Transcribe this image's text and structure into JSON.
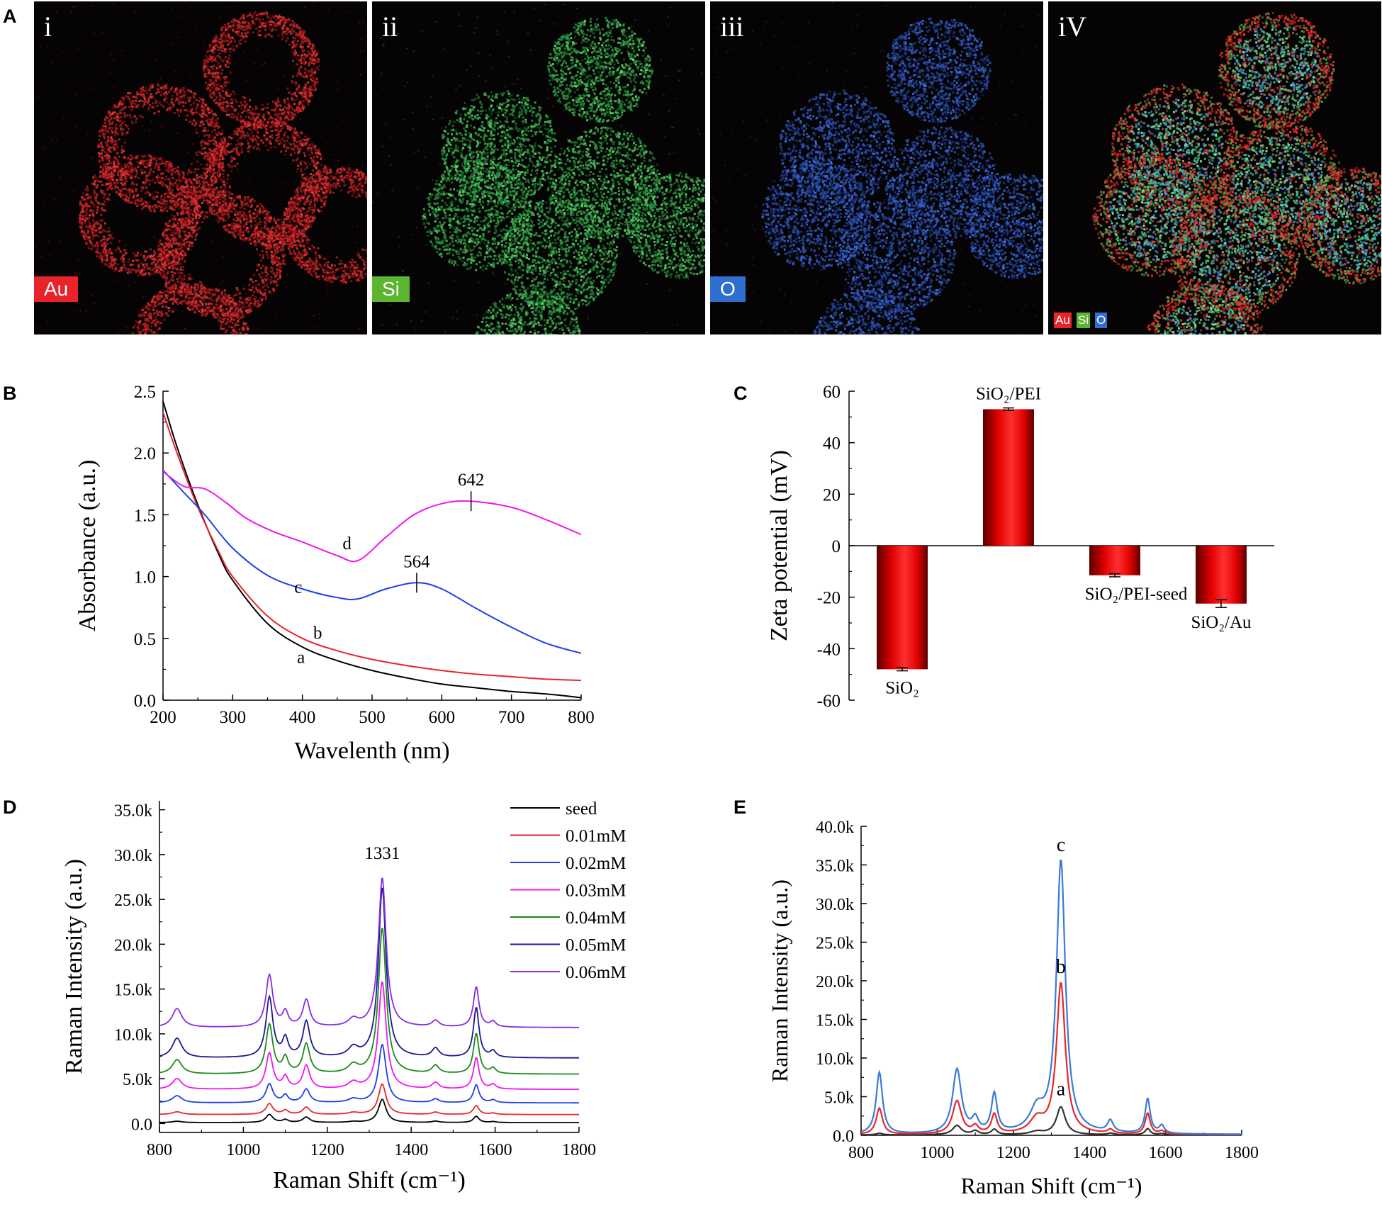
{
  "panel_labels": {
    "a": "A",
    "b": "B",
    "c": "C",
    "d": "D",
    "e": "E"
  },
  "maps": [
    {
      "roman": "i",
      "tag": "Au",
      "tag_color": "#e8232a"
    },
    {
      "roman": "ii",
      "tag": "Si",
      "tag_color": "#5cb531"
    },
    {
      "roman": "iii",
      "tag": "O",
      "tag_color": "#2f6fd0"
    },
    {
      "roman": "iV",
      "tags": [
        "Au",
        "Si",
        "O"
      ]
    }
  ],
  "chart_data": [
    {
      "id": "B",
      "type": "line",
      "xlabel": "Wavelenth (nm)",
      "ylabel": "Absorbance (a.u.)",
      "xlim": [
        200,
        800
      ],
      "ylim": [
        0,
        2.5
      ],
      "xticks": [
        "200",
        "300",
        "400",
        "500",
        "600",
        "700",
        "800"
      ],
      "yticks": [
        "0.0",
        "0.5",
        "1.0",
        "1.5",
        "2.0",
        "2.5"
      ],
      "series": [
        {
          "name": "a",
          "color": "#000000",
          "x": [
            200,
            220,
            250,
            280,
            300,
            350,
            400,
            450,
            500,
            550,
            600,
            650,
            700,
            750,
            800
          ],
          "y": [
            2.42,
            2.05,
            1.58,
            1.18,
            0.97,
            0.62,
            0.43,
            0.32,
            0.24,
            0.18,
            0.13,
            0.1,
            0.07,
            0.05,
            0.02
          ]
        },
        {
          "name": "b",
          "color": "#e8262a",
          "x": [
            200,
            220,
            250,
            280,
            300,
            350,
            400,
            450,
            500,
            550,
            600,
            650,
            700,
            750,
            800
          ],
          "y": [
            2.33,
            2.0,
            1.56,
            1.2,
            1.0,
            0.68,
            0.5,
            0.4,
            0.33,
            0.28,
            0.24,
            0.21,
            0.19,
            0.17,
            0.16
          ]
        },
        {
          "name": "c",
          "color": "#1f3fe6",
          "x": [
            200,
            230,
            260,
            300,
            350,
            400,
            450,
            480,
            520,
            564,
            600,
            650,
            700,
            750,
            800
          ],
          "y": [
            1.86,
            1.68,
            1.5,
            1.23,
            1.01,
            0.9,
            0.83,
            0.82,
            0.9,
            0.95,
            0.9,
            0.74,
            0.59,
            0.46,
            0.38
          ]
        },
        {
          "name": "d",
          "color": "#f016ee",
          "x": [
            200,
            230,
            260,
            290,
            320,
            360,
            400,
            450,
            480,
            520,
            560,
            600,
            642,
            700,
            750,
            800
          ],
          "y": [
            1.85,
            1.73,
            1.71,
            1.6,
            1.47,
            1.36,
            1.28,
            1.17,
            1.13,
            1.32,
            1.5,
            1.59,
            1.61,
            1.56,
            1.46,
            1.34
          ]
        }
      ],
      "annotations": [
        {
          "text": "642",
          "x": 642,
          "y": 1.61
        },
        {
          "text": "564",
          "x": 564,
          "y": 0.95
        }
      ],
      "curve_labels": [
        {
          "text": "a",
          "x": 398,
          "y": 0.3
        },
        {
          "text": "b",
          "x": 422,
          "y": 0.5
        },
        {
          "text": "c",
          "x": 394,
          "y": 0.87
        },
        {
          "text": "d",
          "x": 464,
          "y": 1.22
        }
      ]
    },
    {
      "id": "C",
      "type": "bar",
      "ylabel": "Zeta potential (mV)",
      "ylim": [
        -60,
        60
      ],
      "yticks": [
        "-60",
        "-40",
        "-20",
        "0",
        "20",
        "40",
        "60"
      ],
      "categories": [
        "SiO₂",
        "SiO₂/PEI",
        "SiO₂/PEI-seed",
        "SiO₂/Au"
      ],
      "values": [
        -48,
        53,
        -11.5,
        -22.5
      ],
      "errors": [
        0.6,
        0.5,
        0.6,
        1.5
      ],
      "color": "#e00000"
    },
    {
      "id": "D",
      "type": "line",
      "xlabel": "Raman Shift (cm⁻¹)",
      "ylabel": "Raman Intensity (a.u.)",
      "xlim": [
        800,
        1800
      ],
      "ylim": [
        -1000,
        36000
      ],
      "xticks": [
        "800",
        "1000",
        "1200",
        "1400",
        "1600",
        "1800"
      ],
      "yticks": [
        "0.0",
        "5.0k",
        "10.0k",
        "15.0k",
        "20.0k",
        "25.0k",
        "30.0k",
        "35.0k"
      ],
      "peak_label": "1331",
      "peaks": [
        842,
        1062,
        1100,
        1150,
        1262,
        1331,
        1458,
        1555,
        1595
      ],
      "widths": [
        14,
        10,
        8,
        10,
        14,
        11,
        10,
        8,
        8
      ],
      "series": [
        {
          "name": "seed",
          "color": "#000000",
          "baseline": 100,
          "amps": [
            150,
            900,
            300,
            600,
            100,
            2600,
            150,
            700,
            100
          ]
        },
        {
          "name": "0.01mM",
          "color": "#e8262a",
          "baseline": 1000,
          "amps": [
            300,
            1200,
            450,
            800,
            200,
            3400,
            250,
            1000,
            150
          ]
        },
        {
          "name": "0.02mM",
          "color": "#1f3fe6",
          "baseline": 2300,
          "amps": [
            800,
            2100,
            800,
            1500,
            400,
            6500,
            400,
            2000,
            300
          ]
        },
        {
          "name": "0.03mM",
          "color": "#f016ee",
          "baseline": 3800,
          "amps": [
            1200,
            4000,
            1300,
            2600,
            700,
            12000,
            700,
            3500,
            500
          ]
        },
        {
          "name": "0.04mM",
          "color": "#1a8a1a",
          "baseline": 5500,
          "amps": [
            1600,
            5500,
            1700,
            3300,
            900,
            16300,
            900,
            4500,
            600
          ]
        },
        {
          "name": "0.05mM",
          "color": "#1a1a8c",
          "baseline": 7300,
          "amps": [
            2200,
            6700,
            2000,
            4000,
            1000,
            19000,
            1000,
            5600,
            700
          ]
        },
        {
          "name": "0.06mM",
          "color": "#8a2be2",
          "baseline": 10700,
          "amps": [
            2100,
            5800,
            1600,
            3000,
            800,
            16700,
            700,
            4500,
            600
          ]
        }
      ]
    },
    {
      "id": "E",
      "type": "line",
      "xlabel": "Raman Shift (cm⁻¹)",
      "ylabel": "Raman Intensity (a.u.)",
      "xlim": [
        800,
        1800
      ],
      "ylim": [
        0,
        40000
      ],
      "xticks": [
        "800",
        "1000",
        "1200",
        "1400",
        "1600",
        "1800"
      ],
      "yticks": [
        "0.0",
        "5.0k",
        "10.0k",
        "15.0k",
        "20.0k",
        "25.0k",
        "30.0k",
        "35.0k",
        "40.0k"
      ],
      "peaks": [
        848,
        1052,
        1100,
        1150,
        1262,
        1325,
        1455,
        1553,
        1590
      ],
      "widths": [
        10,
        14,
        10,
        9,
        22,
        14,
        9,
        8,
        8
      ],
      "series": [
        {
          "name": "a",
          "color": "#333333",
          "baseline": 50,
          "amps": [
            200,
            1200,
            500,
            700,
            400,
            3600,
            200,
            800,
            150
          ]
        },
        {
          "name": "b",
          "color": "#e8262a",
          "baseline": 80,
          "amps": [
            3400,
            4300,
            900,
            2500,
            1800,
            19500,
            500,
            2700,
            400
          ]
        },
        {
          "name": "c",
          "color": "#3a7ad8",
          "baseline": 100,
          "amps": [
            8000,
            8300,
            1700,
            5000,
            2800,
            35300,
            1500,
            4500,
            1000
          ]
        }
      ],
      "curve_labels": [
        {
          "text": "c",
          "x": 1325,
          "y": 36800
        },
        {
          "text": "b",
          "x": 1325,
          "y": 21000
        },
        {
          "text": "a",
          "x": 1325,
          "y": 5200
        }
      ]
    }
  ]
}
